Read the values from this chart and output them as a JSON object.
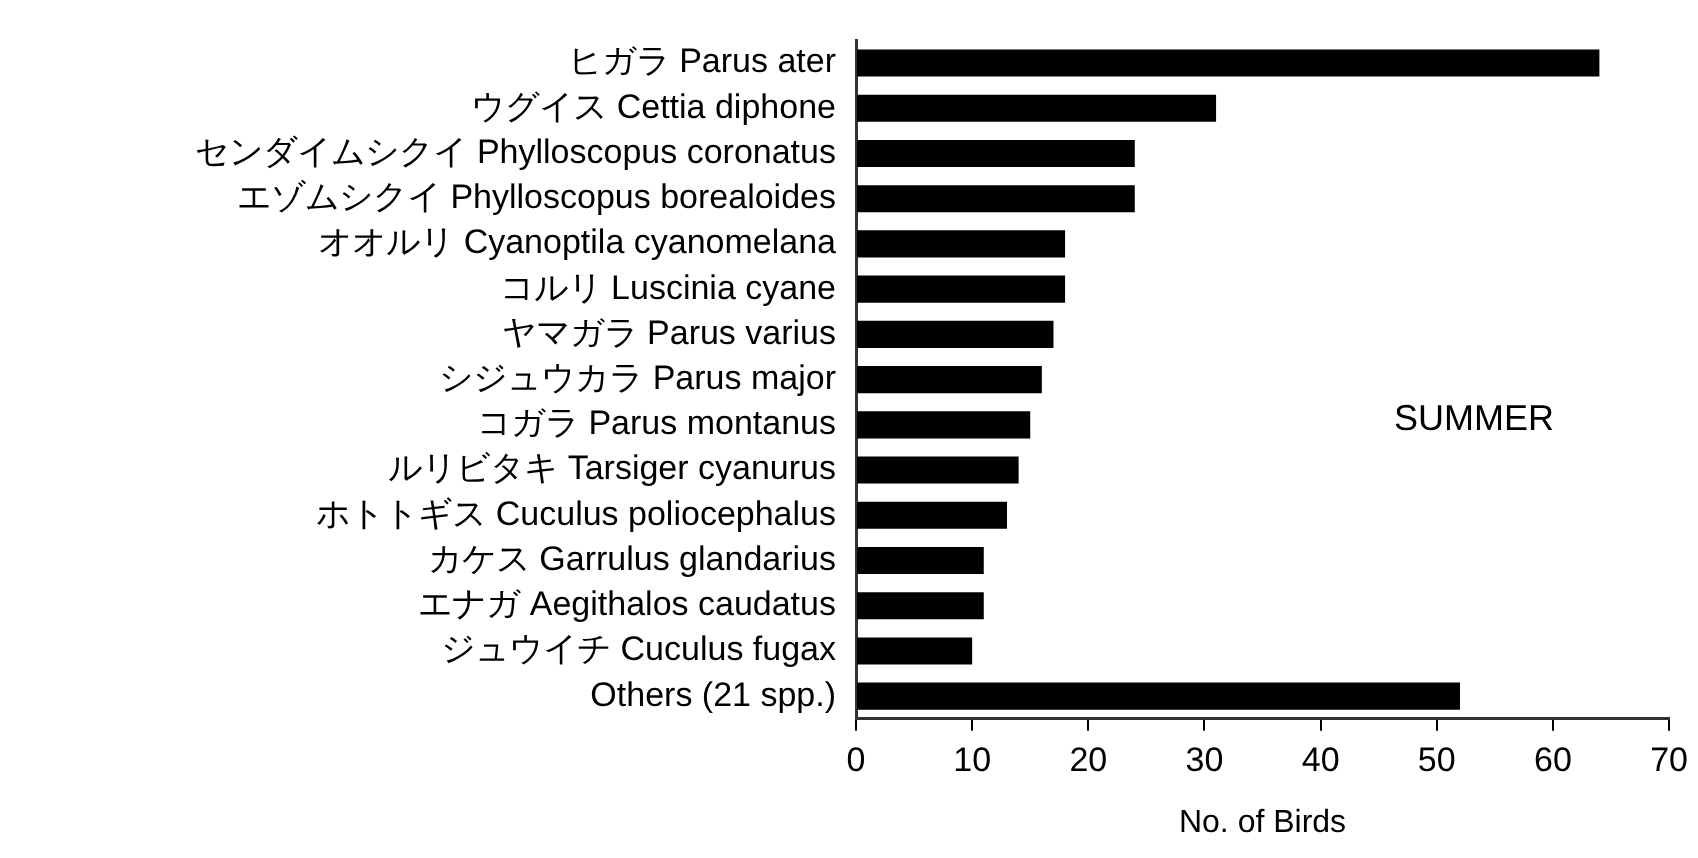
{
  "chart_data": {
    "type": "bar",
    "orientation": "horizontal",
    "categories": [
      "ヒガラ Parus ater",
      "ウグイス Cettia diphone",
      "センダイムシクイ Phylloscopus coronatus",
      "エゾムシクイ Phylloscopus borealoides",
      "オオルリ Cyanoptila cyanomelana",
      "コルリ Luscinia cyane",
      "ヤマガラ Parus varius",
      "シジュウカラ Parus major",
      "コガラ Parus montanus",
      "ルリビタキ Tarsiger cyanurus",
      "ホトトギス Cuculus poliocephalus",
      "カケス Garrulus glandarius",
      "エナガ Aegithalos caudatus",
      "ジュウイチ Cuculus fugax",
      "Others (21 spp.)"
    ],
    "values": [
      64,
      31,
      24,
      24,
      18,
      18,
      17,
      16,
      15,
      14,
      13,
      11,
      11,
      10,
      52
    ],
    "color": "#000000",
    "xlim": [
      0,
      70
    ],
    "xticks": [
      0,
      10,
      20,
      30,
      40,
      50,
      60,
      70
    ],
    "xlabel": "No. of Birds",
    "annotations": [
      "SUMMER"
    ],
    "grid": false,
    "legend": false
  }
}
